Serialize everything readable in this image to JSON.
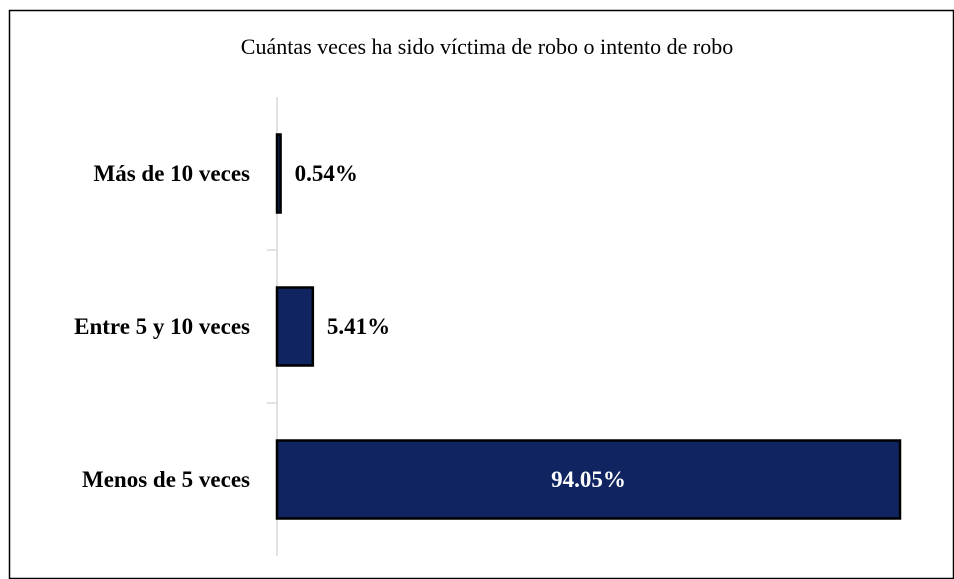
{
  "chart_data": {
    "type": "bar",
    "orientation": "horizontal",
    "title": "Cuántas veces ha sido víctima de robo o intento de robo",
    "categories": [
      "Más de 10 veces",
      "Entre 5 y 10 veces",
      "Menos de 5 veces"
    ],
    "values": [
      0.54,
      5.41,
      94.05
    ],
    "value_labels": [
      "0.54%",
      "5.41%",
      "94.05%"
    ],
    "color": "#0f2460"
  }
}
